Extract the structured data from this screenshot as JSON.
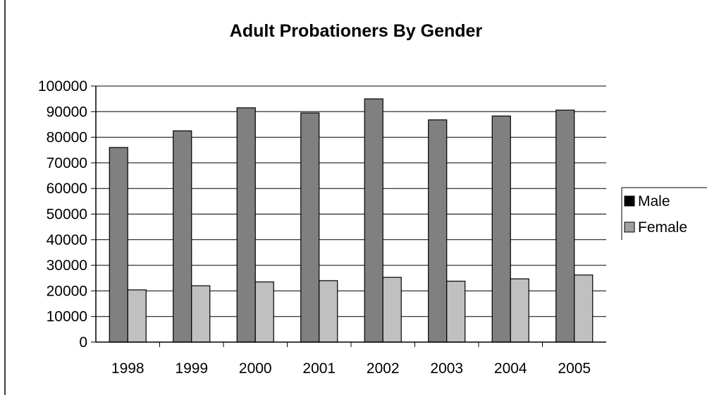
{
  "chart_data": {
    "type": "bar",
    "title": "Adult Probationers By Gender",
    "xlabel": "",
    "ylabel": "",
    "categories": [
      "1998",
      "1999",
      "2000",
      "2001",
      "2002",
      "2003",
      "2004",
      "2005"
    ],
    "series": [
      {
        "name": "Male",
        "values": [
          76000,
          82500,
          91500,
          89500,
          95000,
          86800,
          88300,
          90600
        ]
      },
      {
        "name": "Female",
        "values": [
          20400,
          22000,
          23500,
          24000,
          25300,
          23800,
          24700,
          26200
        ]
      }
    ],
    "ylim": [
      0,
      100000
    ],
    "yticks": [
      "0",
      "10000",
      "20000",
      "30000",
      "40000",
      "50000",
      "60000",
      "70000",
      "80000",
      "90000",
      "100000"
    ],
    "grid": true,
    "legend": {
      "position": "right",
      "entries": [
        "Male",
        "Female"
      ]
    },
    "colors": {
      "male_fill": "#808080",
      "female_fill": "#c0c0c0",
      "male_legend_swatch": "#000000",
      "female_legend_swatch": "#a0a0a0",
      "gridline": "#000000",
      "bar_stroke": "#000000"
    }
  }
}
